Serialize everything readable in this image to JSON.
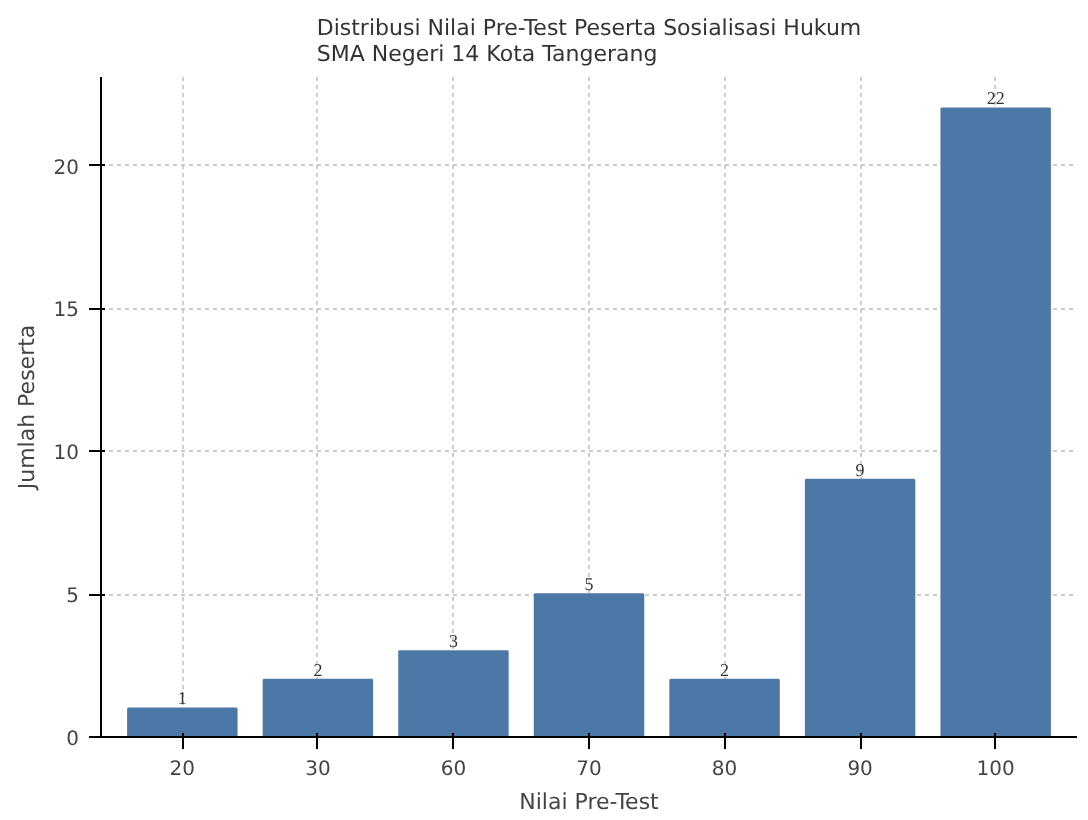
{
  "chart_data": {
    "type": "bar",
    "title": "Distribusi Nilai Pre-Test Peserta Sosialisasi Hukum\nSMA Negeri 14 Kota Tangerang",
    "xlabel": "Nilai Pre-Test",
    "ylabel": "Jumlah Peserta",
    "categories": [
      "20",
      "30",
      "60",
      "70",
      "80",
      "90",
      "100"
    ],
    "values": [
      1,
      2,
      3,
      5,
      2,
      9,
      22
    ],
    "color": "#4c78a8",
    "ylim": [
      0,
      23.1
    ],
    "yticks": [
      0,
      5,
      10,
      15,
      20
    ],
    "grid": true,
    "data_labels": true
  }
}
